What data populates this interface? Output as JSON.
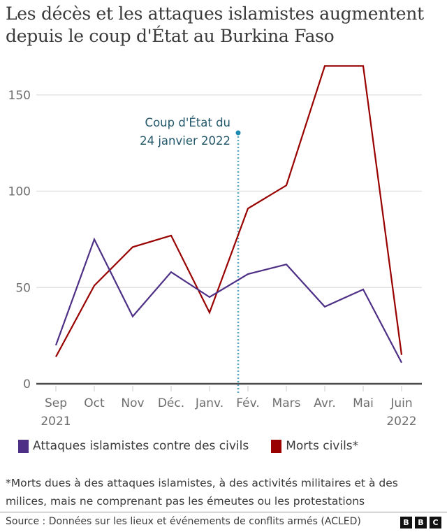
{
  "title": "Les décès et les attaques islamistes augmentent depuis le coup d'État au Burkina Faso",
  "annotation": {
    "line1": "Coup d'État du",
    "line2": "24 janvier 2022",
    "color": "#1a8ab0"
  },
  "legend": [
    {
      "label": "Attaques islamistes contre des civils",
      "color": "#4e2f86"
    },
    {
      "label": "Morts civils*",
      "color": "#990000"
    }
  ],
  "footnote": "*Morts dues à des attaques islamistes, à des activités militaires et à des milices, mais ne comprenant pas les émeutes ou les protestations",
  "source": "Source : Données sur les lieux et événements de conflits armés (ACLED)",
  "logo": [
    "B",
    "B",
    "C"
  ],
  "x_year_labels": {
    "start": "2021",
    "end": "2022"
  },
  "chart_data": {
    "type": "line",
    "title": "Les décès et les attaques islamistes augmentent depuis le coup d'État au Burkina Faso",
    "xlabel": "",
    "ylabel": "",
    "categories": [
      "Sep",
      "Oct",
      "Nov",
      "Déc.",
      "Janv.",
      "Fév.",
      "Mars",
      "Avr.",
      "Mai",
      "Juin"
    ],
    "x_sublabels": [
      "2021",
      "",
      "",
      "",
      "",
      "",
      "",
      "",
      "",
      "2022"
    ],
    "series": [
      {
        "name": "Attaques islamistes contre des civils",
        "color": "#4e2f86",
        "values": [
          20,
          75,
          35,
          58,
          45,
          57,
          62,
          40,
          49,
          11
        ]
      },
      {
        "name": "Morts civils*",
        "color": "#990000",
        "values": [
          14,
          51,
          71,
          77,
          37,
          91,
          103,
          165,
          165,
          15
        ]
      }
    ],
    "yticks": [
      0,
      50,
      100,
      150
    ],
    "ylim": [
      0,
      165
    ],
    "grid": true,
    "legend_position": "bottom",
    "annotations": [
      {
        "x": "24 janvier 2022",
        "text": "Coup d'État du 24 janvier 2022",
        "style": "dotted vertical line"
      }
    ]
  }
}
